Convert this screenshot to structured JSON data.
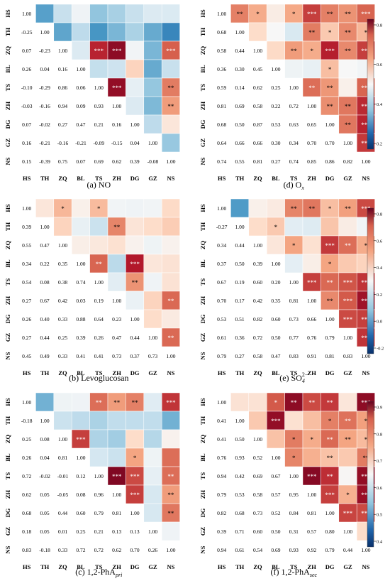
{
  "figure": {
    "labels": [
      "HS",
      "TH",
      "ZQ",
      "BL",
      "TS",
      "ZH",
      "DG",
      "GZ",
      "NS"
    ],
    "colorbar_ticks": [
      [
        0.8,
        0.6,
        0.4,
        0.2
      ],
      [
        0.8,
        0.6,
        0.4,
        0.2,
        0.0,
        -0.2
      ],
      [
        0.9,
        0.8,
        0.7,
        0.6,
        0.5,
        0.4
      ]
    ]
  },
  "chart_data": [
    {
      "type": "heatmap",
      "caption": {
        "pre": "(a) NO",
        "sub": "",
        "sup": ""
      },
      "colormap": "RdBu_r",
      "matrix": [
        [
          1.0,
          null,
          null,
          null,
          null,
          null,
          null,
          null,
          null
        ],
        [
          -0.25,
          1.0,
          null,
          null,
          null,
          null,
          null,
          null,
          null
        ],
        [
          0.07,
          -0.23,
          1.0,
          null,
          null,
          null,
          null,
          null,
          null
        ],
        [
          0.26,
          0.04,
          0.16,
          1.0,
          null,
          null,
          null,
          null,
          null
        ],
        [
          -0.1,
          -0.29,
          0.86,
          0.06,
          1.0,
          null,
          null,
          null,
          null
        ],
        [
          -0.03,
          -0.16,
          0.94,
          0.09,
          0.93,
          1.0,
          null,
          null,
          null
        ],
        [
          0.07,
          -0.02,
          0.27,
          0.47,
          0.21,
          0.16,
          1.0,
          null,
          null
        ],
        [
          0.16,
          -0.21,
          -0.16,
          -0.21,
          -0.09,
          -0.15,
          0.04,
          1.0,
          null
        ],
        [
          0.15,
          -0.39,
          0.75,
          0.07,
          0.69,
          0.62,
          0.39,
          -0.08,
          1.0
        ]
      ],
      "significance": [
        [
          2,
          4,
          "***"
        ],
        [
          2,
          5,
          "***"
        ],
        [
          2,
          8,
          "***"
        ],
        [
          4,
          5,
          "***"
        ],
        [
          4,
          8,
          "**"
        ],
        [
          5,
          8,
          "**"
        ]
      ]
    },
    {
      "type": "heatmap",
      "caption": {
        "pre": "(b) Levoglucosan",
        "sub": "",
        "sup": ""
      },
      "colormap": "RdBu_r",
      "matrix": [
        [
          1.0,
          null,
          null,
          null,
          null,
          null,
          null,
          null,
          null
        ],
        [
          0.39,
          1.0,
          null,
          null,
          null,
          null,
          null,
          null,
          null
        ],
        [
          0.55,
          0.47,
          1.0,
          null,
          null,
          null,
          null,
          null,
          null
        ],
        [
          0.34,
          0.22,
          0.35,
          1.0,
          null,
          null,
          null,
          null,
          null
        ],
        [
          0.54,
          0.08,
          0.38,
          0.74,
          1.0,
          null,
          null,
          null,
          null
        ],
        [
          0.27,
          0.67,
          0.42,
          0.03,
          0.19,
          1.0,
          null,
          null,
          null
        ],
        [
          0.26,
          0.4,
          0.33,
          0.88,
          0.64,
          0.23,
          1.0,
          null,
          null
        ],
        [
          0.27,
          0.44,
          0.25,
          0.39,
          0.26,
          0.47,
          0.44,
          1.0,
          null
        ],
        [
          0.45,
          0.49,
          0.33,
          0.41,
          0.41,
          0.73,
          0.37,
          0.73,
          1.0
        ]
      ],
      "significance": [
        [
          0,
          2,
          "*"
        ],
        [
          0,
          4,
          "*"
        ],
        [
          1,
          5,
          "**"
        ],
        [
          3,
          4,
          "**"
        ],
        [
          3,
          6,
          "***"
        ],
        [
          4,
          6,
          "**"
        ],
        [
          5,
          8,
          "**"
        ],
        [
          7,
          8,
          "**"
        ]
      ]
    },
    {
      "type": "heatmap",
      "caption": {
        "pre": "(c) 1,2-PhA",
        "sub": "pri",
        "sup": ""
      },
      "colormap": "RdBu_r",
      "matrix": [
        [
          1.0,
          null,
          null,
          null,
          null,
          null,
          null,
          null,
          null
        ],
        [
          -0.18,
          1.0,
          null,
          null,
          null,
          null,
          null,
          null,
          null
        ],
        [
          0.25,
          0.08,
          1.0,
          null,
          null,
          null,
          null,
          null,
          null
        ],
        [
          0.26,
          0.04,
          0.81,
          1.0,
          null,
          null,
          null,
          null,
          null
        ],
        [
          0.72,
          -0.02,
          -0.01,
          0.12,
          1.0,
          null,
          null,
          null,
          null
        ],
        [
          0.62,
          0.05,
          -0.05,
          0.08,
          0.96,
          1.0,
          null,
          null,
          null
        ],
        [
          0.68,
          0.05,
          0.44,
          0.6,
          0.79,
          0.81,
          1.0,
          null,
          null
        ],
        [
          0.18,
          0.05,
          0.01,
          0.25,
          0.21,
          0.13,
          0.13,
          1.0,
          null
        ],
        [
          0.83,
          -0.18,
          0.33,
          0.72,
          0.72,
          0.62,
          0.7,
          0.26,
          1.0
        ]
      ],
      "significance": [
        [
          0,
          4,
          "**"
        ],
        [
          0,
          5,
          "**"
        ],
        [
          0,
          6,
          "**"
        ],
        [
          0,
          8,
          "***"
        ],
        [
          2,
          3,
          "***"
        ],
        [
          3,
          6,
          "*"
        ],
        [
          4,
          5,
          "***"
        ],
        [
          4,
          6,
          "***"
        ],
        [
          4,
          8,
          "**"
        ],
        [
          5,
          6,
          "***"
        ],
        [
          5,
          8,
          "**"
        ],
        [
          6,
          8,
          "**"
        ]
      ]
    },
    {
      "type": "heatmap",
      "caption": {
        "pre": "(d) O",
        "sub": "x",
        "sup": ""
      },
      "colormap": "RdBu_r",
      "matrix": [
        [
          1.0,
          null,
          null,
          null,
          null,
          null,
          null,
          null,
          null
        ],
        [
          0.68,
          1.0,
          null,
          null,
          null,
          null,
          null,
          null,
          null
        ],
        [
          0.58,
          0.44,
          1.0,
          null,
          null,
          null,
          null,
          null,
          null
        ],
        [
          0.36,
          0.3,
          0.45,
          1.0,
          null,
          null,
          null,
          null,
          null
        ],
        [
          0.59,
          0.14,
          0.62,
          0.25,
          1.0,
          null,
          null,
          null,
          null
        ],
        [
          0.81,
          0.69,
          0.58,
          0.22,
          0.72,
          1.0,
          null,
          null,
          null
        ],
        [
          0.68,
          0.5,
          0.87,
          0.53,
          0.63,
          0.65,
          1.0,
          null,
          null
        ],
        [
          0.64,
          0.66,
          0.66,
          0.3,
          0.34,
          0.7,
          0.7,
          1.0,
          null
        ],
        [
          0.74,
          0.55,
          0.81,
          0.27,
          0.74,
          0.85,
          0.86,
          0.82,
          1.0
        ]
      ],
      "significance": [
        [
          0,
          1,
          "**"
        ],
        [
          0,
          2,
          "*"
        ],
        [
          0,
          4,
          "*"
        ],
        [
          0,
          5,
          "***"
        ],
        [
          0,
          6,
          "**"
        ],
        [
          0,
          7,
          "**"
        ],
        [
          0,
          8,
          "***"
        ],
        [
          1,
          5,
          "**"
        ],
        [
          1,
          6,
          "*"
        ],
        [
          1,
          7,
          "**"
        ],
        [
          1,
          8,
          "*"
        ],
        [
          2,
          4,
          "**"
        ],
        [
          2,
          5,
          "*"
        ],
        [
          2,
          6,
          "***"
        ],
        [
          2,
          7,
          "**"
        ],
        [
          2,
          8,
          "***"
        ],
        [
          3,
          6,
          "*"
        ],
        [
          4,
          5,
          "**"
        ],
        [
          4,
          6,
          "**"
        ],
        [
          4,
          8,
          "***"
        ],
        [
          5,
          6,
          "**"
        ],
        [
          5,
          7,
          "**"
        ],
        [
          5,
          8,
          "***"
        ],
        [
          6,
          7,
          "**"
        ],
        [
          6,
          8,
          "***"
        ],
        [
          7,
          8,
          "***"
        ]
      ]
    },
    {
      "type": "heatmap",
      "caption": {
        "pre": "(e) SO",
        "sub": "4",
        "sup": "2−"
      },
      "colormap": "RdBu_r",
      "matrix": [
        [
          1.0,
          null,
          null,
          null,
          null,
          null,
          null,
          null,
          null
        ],
        [
          -0.27,
          1.0,
          null,
          null,
          null,
          null,
          null,
          null,
          null
        ],
        [
          0.34,
          0.44,
          1.0,
          null,
          null,
          null,
          null,
          null,
          null
        ],
        [
          0.37,
          0.5,
          0.39,
          1.0,
          null,
          null,
          null,
          null,
          null
        ],
        [
          0.67,
          0.19,
          0.6,
          0.2,
          1.0,
          null,
          null,
          null,
          null
        ],
        [
          0.7,
          0.17,
          0.42,
          0.35,
          0.81,
          1.0,
          null,
          null,
          null
        ],
        [
          0.53,
          0.51,
          0.82,
          0.6,
          0.73,
          0.66,
          1.0,
          null,
          null
        ],
        [
          0.61,
          0.36,
          0.72,
          0.5,
          0.77,
          0.76,
          0.79,
          1.0,
          null
        ],
        [
          0.79,
          0.27,
          0.58,
          0.47,
          0.83,
          0.91,
          0.81,
          0.83,
          1.0
        ]
      ],
      "significance": [
        [
          0,
          4,
          "**"
        ],
        [
          0,
          5,
          "**"
        ],
        [
          0,
          6,
          "*"
        ],
        [
          0,
          7,
          "**"
        ],
        [
          0,
          8,
          "***"
        ],
        [
          1,
          3,
          "*"
        ],
        [
          2,
          4,
          "*"
        ],
        [
          2,
          6,
          "***"
        ],
        [
          2,
          7,
          "**"
        ],
        [
          2,
          8,
          "*"
        ],
        [
          3,
          6,
          "*"
        ],
        [
          4,
          5,
          "***"
        ],
        [
          4,
          6,
          "**"
        ],
        [
          4,
          7,
          "***"
        ],
        [
          4,
          8,
          "***"
        ],
        [
          5,
          6,
          "**"
        ],
        [
          5,
          7,
          "***"
        ],
        [
          5,
          8,
          "***"
        ],
        [
          6,
          7,
          "***"
        ],
        [
          6,
          8,
          "***"
        ],
        [
          7,
          8,
          "***"
        ]
      ]
    },
    {
      "type": "heatmap",
      "caption": {
        "pre": "(f) 1,2-PhA",
        "sub": "sec",
        "sup": ""
      },
      "colormap": "RdBu_r",
      "matrix": [
        [
          1.0,
          null,
          null,
          null,
          null,
          null,
          null,
          null,
          null
        ],
        [
          0.41,
          1.0,
          null,
          null,
          null,
          null,
          null,
          null,
          null
        ],
        [
          0.41,
          0.5,
          1.0,
          null,
          null,
          null,
          null,
          null,
          null
        ],
        [
          0.76,
          0.93,
          0.52,
          1.0,
          null,
          null,
          null,
          null,
          null
        ],
        [
          0.94,
          0.42,
          0.69,
          0.67,
          1.0,
          null,
          null,
          null,
          null
        ],
        [
          0.79,
          0.53,
          0.58,
          0.57,
          0.95,
          1.0,
          null,
          null,
          null
        ],
        [
          0.82,
          0.68,
          0.73,
          0.52,
          0.84,
          0.81,
          1.0,
          null,
          null
        ],
        [
          0.39,
          0.71,
          0.6,
          0.5,
          0.31,
          0.57,
          0.8,
          1.0,
          null
        ],
        [
          0.94,
          0.61,
          0.54,
          0.69,
          0.93,
          0.92,
          0.79,
          0.44,
          1.0
        ]
      ],
      "significance": [
        [
          0,
          3,
          "*"
        ],
        [
          0,
          4,
          "**"
        ],
        [
          0,
          5,
          "**"
        ],
        [
          0,
          6,
          "**"
        ],
        [
          0,
          8,
          "***"
        ],
        [
          1,
          3,
          "***"
        ],
        [
          1,
          6,
          "*"
        ],
        [
          1,
          7,
          "**"
        ],
        [
          1,
          8,
          "*"
        ],
        [
          2,
          4,
          "*"
        ],
        [
          2,
          5,
          "*"
        ],
        [
          2,
          6,
          "**"
        ],
        [
          2,
          7,
          "**"
        ],
        [
          2,
          8,
          "*"
        ],
        [
          3,
          4,
          "*"
        ],
        [
          3,
          6,
          "**"
        ],
        [
          3,
          8,
          "**"
        ],
        [
          4,
          5,
          "***"
        ],
        [
          4,
          6,
          "**"
        ],
        [
          4,
          8,
          "***"
        ],
        [
          5,
          6,
          "***"
        ],
        [
          5,
          7,
          "*"
        ],
        [
          5,
          8,
          "***"
        ],
        [
          6,
          7,
          "***"
        ],
        [
          6,
          8,
          "***"
        ]
      ]
    }
  ]
}
